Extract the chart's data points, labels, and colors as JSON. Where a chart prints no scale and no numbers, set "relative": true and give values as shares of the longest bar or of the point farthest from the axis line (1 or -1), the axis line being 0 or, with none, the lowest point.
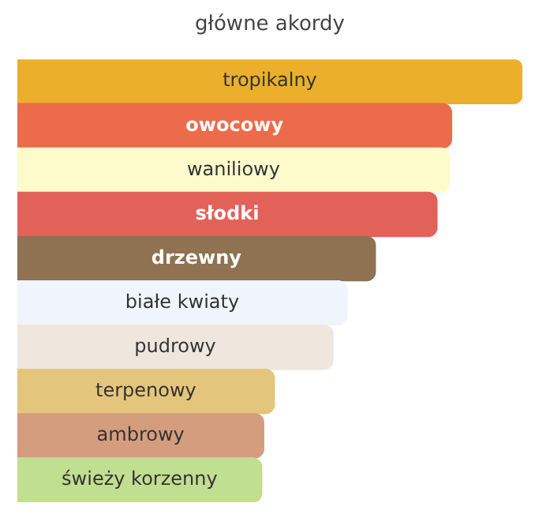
{
  "chart_data": {
    "type": "bar",
    "orientation": "horizontal",
    "relative": true,
    "title": "główne akordy",
    "categories": [
      "tropikalny",
      "owocowy",
      "waniliowy",
      "słodki",
      "drzewny",
      "białe kwiaty",
      "pudrowy",
      "terpenowy",
      "ambrowy",
      "świeży korzenny"
    ],
    "values": [
      1,
      0.86,
      0.856,
      0.831,
      0.709,
      0.653,
      0.625,
      0.509,
      0.488,
      0.484
    ],
    "colors": [
      "#ebaf2b",
      "#ec6b4a",
      "#fdfbcb",
      "#e2625a",
      "#8f7252",
      "#f0f4fd",
      "#efe6dd",
      "#e3c67c",
      "#d49d7e",
      "#c1df90"
    ]
  }
}
